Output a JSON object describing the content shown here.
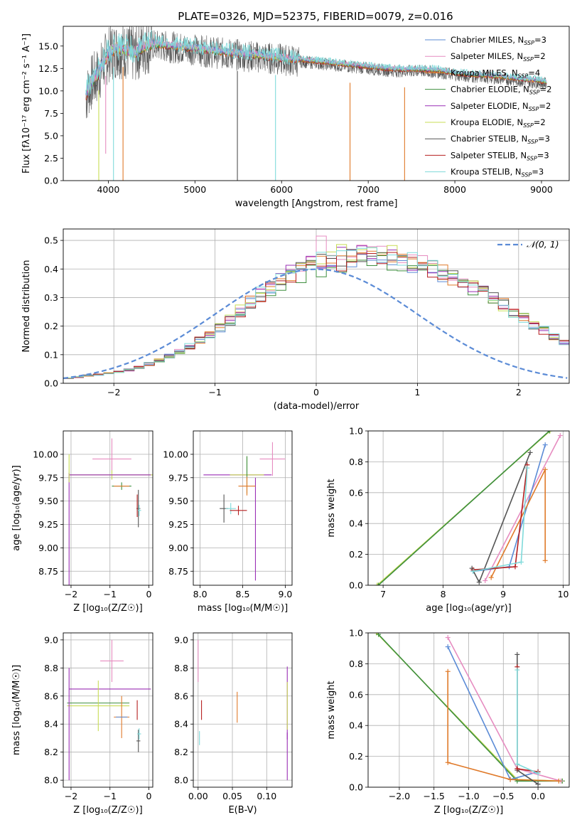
{
  "figure": {
    "title": "PLATE=0326, MJD=52375, FIBERID=0079, z=0.016"
  },
  "colors": {
    "chabrier_miles": "#5b8bd6",
    "salpeter_miles": "#e68cc0",
    "kroupa_miles": "#e07a2a",
    "chabrier_elodie": "#3f8f3f",
    "salpeter_elodie": "#9a2fb5",
    "kroupa_elodie": "#c8dc55",
    "chabrier_stelib": "#555555",
    "salpeter_stelib": "#b51f1f",
    "kroupa_stelib": "#7fdada",
    "gauss": "#5b8bd6",
    "grid": "#b0b0b0"
  },
  "chart_data": [
    {
      "id": "spectrum",
      "type": "line",
      "xlabel": "wavelength [Angstrom, rest frame]",
      "ylabel": "Flux [fλ10⁻¹⁷ erg cm⁻² s⁻¹ A⁻¹]",
      "xlim": [
        3480,
        9320
      ],
      "ylim": [
        0,
        17.2
      ],
      "xticks": [
        "4000",
        "5000",
        "6000",
        "7000",
        "8000",
        "9000"
      ],
      "yticks": [
        "0.0",
        "2.5",
        "5.0",
        "7.5",
        "10.0",
        "12.5",
        "15.0"
      ],
      "grid": false,
      "legend": "upper right",
      "legend_entries": [
        {
          "name": "Chabrier MILES, N",
          "sub": "SSP",
          "tail": "=3",
          "color_key": "chabrier_miles"
        },
        {
          "name": "Salpeter MILES, N",
          "sub": "SSP",
          "tail": "=2",
          "color_key": "salpeter_miles"
        },
        {
          "name": "Kroupa MILES, N",
          "sub": "SSP",
          "tail": "=4",
          "color_key": "kroupa_miles"
        },
        {
          "name": "Chabrier ELODIE, N",
          "sub": "SSP",
          "tail": "=2",
          "color_key": "chabrier_elodie"
        },
        {
          "name": "Salpeter ELODIE, N",
          "sub": "SSP",
          "tail": "=2",
          "color_key": "salpeter_elodie"
        },
        {
          "name": "Kroupa ELODIE, N",
          "sub": "SSP",
          "tail": "=2",
          "color_key": "kroupa_elodie"
        },
        {
          "name": "Chabrier STELIB, N",
          "sub": "SSP",
          "tail": "=3",
          "color_key": "chabrier_stelib"
        },
        {
          "name": "Salpeter STELIB, N",
          "sub": "SSP",
          "tail": "=3",
          "color_key": "salpeter_stelib"
        },
        {
          "name": "Kroupa STELIB, N",
          "sub": "SSP",
          "tail": "=3",
          "color_key": "kroupa_stelib"
        }
      ],
      "continuum": {
        "x": [
          3740,
          3800,
          3900,
          4000,
          4100,
          4200,
          4300,
          4400,
          4500,
          4600,
          4800,
          5000,
          5200,
          5400,
          5600,
          5800,
          6000,
          6200,
          6400,
          6600,
          6800,
          7000,
          7200,
          7400,
          7600,
          7800,
          8000,
          8200,
          8400,
          8600,
          8800,
          9000,
          9060
        ],
        "y": [
          9.5,
          11.0,
          12.2,
          14.3,
          14.8,
          14.6,
          14.2,
          15.0,
          15.3,
          15.2,
          15.0,
          14.8,
          14.5,
          14.3,
          14.1,
          13.9,
          13.7,
          13.5,
          13.3,
          13.1,
          12.9,
          12.7,
          12.5,
          12.4,
          12.4,
          12.3,
          12.0,
          11.8,
          11.7,
          11.5,
          11.3,
          11.1,
          11.0
        ]
      },
      "dips": [
        {
          "x": 3890,
          "y": 0.0
        },
        {
          "x": 3970,
          "y": 3.0
        },
        {
          "x": 4060,
          "y": 0.0
        },
        {
          "x": 4170,
          "y": 0.0
        },
        {
          "x": 5490,
          "y": 0.0
        },
        {
          "x": 5930,
          "y": 0.0
        },
        {
          "x": 6790,
          "y": 0.0
        },
        {
          "x": 7420,
          "y": 0.0
        }
      ]
    },
    {
      "id": "residuals",
      "type": "line",
      "xlabel": "(data-model)/error",
      "ylabel": "Normed distribution",
      "xlim": [
        -2.5,
        2.5
      ],
      "ylim": [
        0,
        0.54
      ],
      "xticks": [
        "−2",
        "−1",
        "0",
        "1",
        "2"
      ],
      "yticks": [
        "0.0",
        "0.1",
        "0.2",
        "0.3",
        "0.4",
        "0.5"
      ],
      "grid": true,
      "legend": "upper right",
      "gauss_label": "𝒩(0, 1)",
      "bin_edges_start": -2.5,
      "bin_width": 0.1,
      "hist_base": [
        0.018,
        0.022,
        0.027,
        0.03,
        0.035,
        0.04,
        0.047,
        0.057,
        0.068,
        0.08,
        0.095,
        0.11,
        0.13,
        0.15,
        0.17,
        0.195,
        0.22,
        0.25,
        0.28,
        0.305,
        0.33,
        0.355,
        0.375,
        0.39,
        0.405,
        0.415,
        0.425,
        0.43,
        0.435,
        0.435,
        0.43,
        0.43,
        0.43,
        0.425,
        0.42,
        0.41,
        0.4,
        0.385,
        0.37,
        0.355,
        0.335,
        0.315,
        0.295,
        0.275,
        0.25,
        0.23,
        0.205,
        0.185,
        0.165,
        0.145,
        0.13,
        0.115,
        0.1,
        0.088,
        0.076,
        0.065,
        0.056,
        0.048,
        0.04,
        0.034,
        0.028,
        0.024,
        0.02,
        0.017,
        0.014,
        0.012,
        0.01,
        0.008,
        0.007,
        0.006
      ]
    },
    {
      "id": "age_Z",
      "type": "scatter",
      "xlabel": "Z [log₁₀(Z/Z☉)]",
      "ylabel": "age  [log₁₀(age/yr)]",
      "xlim": [
        -2.2,
        0.1
      ],
      "ylim": [
        8.6,
        10.25
      ],
      "xticks": [
        "−2",
        "−1",
        "0"
      ],
      "yticks": [
        "8.75",
        "9.00",
        "9.25",
        "9.50",
        "9.75",
        "10.00"
      ],
      "grid": true,
      "points": [
        {
          "c": "salpeter_miles",
          "x": -0.95,
          "y": 9.95,
          "ex": 0.5,
          "ey": 0.22
        },
        {
          "c": "kroupa_elodie",
          "x": -0.95,
          "y": 9.78,
          "ex": 1.1,
          "ey": 0.05
        },
        {
          "c": "salpeter_elodie",
          "x": -1.0,
          "y": 9.78,
          "ex": 1.05,
          "ey": 0.0
        },
        {
          "c": "salpeter_elodie",
          "x": -2.05,
          "y": 9.2,
          "ex": 0.0,
          "ey": 0.6
        },
        {
          "c": "kroupa_elodie",
          "x": -2.05,
          "y": 9.85,
          "ex": 0.0,
          "ey": 0.15
        },
        {
          "c": "chabrier_elodie",
          "x": -0.7,
          "y": 9.66,
          "ex": 0.25,
          "ey": 0.04
        },
        {
          "c": "kroupa_miles",
          "x": -0.7,
          "y": 9.66,
          "ex": 0.2,
          "ey": 0.0
        },
        {
          "c": "chabrier_stelib",
          "x": -0.27,
          "y": 9.42,
          "ex": 0.05,
          "ey": 0.2
        },
        {
          "c": "kroupa_stelib",
          "x": -0.25,
          "y": 9.4,
          "ex": 0.05,
          "ey": 0.06
        },
        {
          "c": "salpeter_stelib",
          "x": -0.3,
          "y": 9.45,
          "ex": 0.0,
          "ey": 0.12
        }
      ]
    },
    {
      "id": "age_mass",
      "type": "scatter",
      "xlabel": "mass [log₁₀(M/M☉)]",
      "ylabel": "",
      "xlim": [
        7.92,
        9.08
      ],
      "ylim": [
        8.6,
        10.25
      ],
      "xticks": [
        "8.0",
        "8.5",
        "9.0"
      ],
      "yticks": [
        "8.75",
        "9.00",
        "9.25",
        "9.50",
        "9.75",
        "10.00"
      ],
      "grid": true,
      "points": [
        {
          "c": "salpeter_miles",
          "x": 8.85,
          "y": 9.95,
          "ex": 0.15,
          "ey": 0.18
        },
        {
          "c": "salpeter_elodie",
          "x": 8.44,
          "y": 9.78,
          "ex": 0.4,
          "ey": 0.0
        },
        {
          "c": "kroupa_elodie",
          "x": 8.55,
          "y": 9.78,
          "ex": 0.2,
          "ey": 0.2
        },
        {
          "c": "chabrier_elodie",
          "x": 8.55,
          "y": 9.78,
          "ex": 0.0,
          "ey": 0.2
        },
        {
          "c": "salpeter_elodie",
          "x": 8.65,
          "y": 9.2,
          "ex": 0.0,
          "ey": 0.55
        },
        {
          "c": "kroupa_miles",
          "x": 8.55,
          "y": 9.66,
          "ex": 0.1,
          "ey": 0.1
        },
        {
          "c": "chabrier_stelib",
          "x": 8.28,
          "y": 9.42,
          "ex": 0.05,
          "ey": 0.15
        },
        {
          "c": "kroupa_stelib",
          "x": 8.36,
          "y": 9.42,
          "ex": 0.06,
          "ey": 0.06
        },
        {
          "c": "salpeter_stelib",
          "x": 8.45,
          "y": 9.4,
          "ex": 0.1,
          "ey": 0.05
        }
      ]
    },
    {
      "id": "weight_age",
      "type": "line",
      "xlabel": "age  [log₁₀(age/yr)]",
      "ylabel": "mass weight",
      "xlim": [
        6.75,
        10.1
      ],
      "ylim": [
        0,
        1.0
      ],
      "xticks": [
        "7",
        "8",
        "9",
        "10"
      ],
      "yticks": [
        "0.0",
        "0.2",
        "0.4",
        "0.6",
        "0.8",
        "1.0"
      ],
      "grid": true,
      "series": [
        {
          "c": "kroupa_elodie",
          "x": [
            6.9,
            9.78
          ],
          "y": [
            0.0,
            1.0
          ]
        },
        {
          "c": "chabrier_elodie",
          "x": [
            6.92,
            9.77
          ],
          "y": [
            0.0,
            1.0
          ]
        },
        {
          "c": "salpeter_miles",
          "x": [
            8.7,
            9.95
          ],
          "y": [
            0.03,
            0.97
          ]
        },
        {
          "c": "chabrier_miles",
          "x": [
            8.5,
            9.1,
            9.7
          ],
          "y": [
            0.09,
            0.12,
            0.91
          ]
        },
        {
          "c": "kroupa_miles",
          "x": [
            8.8,
            9.7,
            9.7
          ],
          "y": [
            0.05,
            0.75,
            0.16
          ]
        },
        {
          "c": "chabrier_stelib",
          "x": [
            8.48,
            8.6,
            9.45
          ],
          "y": [
            0.11,
            0.02,
            0.86
          ]
        },
        {
          "c": "salpeter_stelib",
          "x": [
            8.5,
            9.2,
            9.4
          ],
          "y": [
            0.1,
            0.12,
            0.78
          ]
        },
        {
          "c": "kroupa_stelib",
          "x": [
            8.5,
            9.3,
            9.4
          ],
          "y": [
            0.09,
            0.15,
            0.76
          ]
        }
      ]
    },
    {
      "id": "mass_Z",
      "type": "scatter",
      "xlabel": "Z [log₁₀(Z/Z☉)]",
      "ylabel": "mass [log₁₀(M/M☉)]",
      "xlim": [
        -2.2,
        0.1
      ],
      "ylim": [
        7.95,
        9.05
      ],
      "xticks": [
        "−2",
        "−1",
        "0"
      ],
      "yticks": [
        "8.0",
        "8.2",
        "8.4",
        "8.6",
        "8.8",
        "9.0"
      ],
      "grid": true,
      "points": [
        {
          "c": "salpeter_miles",
          "x": -0.95,
          "y": 8.85,
          "ex": 0.3,
          "ey": 0.15
        },
        {
          "c": "salpeter_elodie",
          "x": -1.0,
          "y": 8.65,
          "ex": 1.05,
          "ey": 0.0
        },
        {
          "c": "chabrier_elodie",
          "x": -1.3,
          "y": 8.55,
          "ex": 0.8,
          "ey": 0.0
        },
        {
          "c": "kroupa_elodie",
          "x": -1.3,
          "y": 8.53,
          "ex": 0.8,
          "ey": 0.18
        },
        {
          "c": "salpeter_elodie",
          "x": -2.05,
          "y": 8.4,
          "ex": 0.0,
          "ey": 0.4
        },
        {
          "c": "kroupa_miles",
          "x": -0.7,
          "y": 8.45,
          "ex": 0.2,
          "ey": 0.15
        },
        {
          "c": "chabrier_miles",
          "x": -0.7,
          "y": 8.45,
          "ex": 0.15,
          "ey": 0.0
        },
        {
          "c": "chabrier_stelib",
          "x": -0.27,
          "y": 8.28,
          "ex": 0.05,
          "ey": 0.08
        },
        {
          "c": "kroupa_stelib",
          "x": -0.25,
          "y": 8.33,
          "ex": 0.05,
          "ey": 0.04
        },
        {
          "c": "salpeter_stelib",
          "x": -0.3,
          "y": 8.5,
          "ex": 0.0,
          "ey": 0.07
        }
      ]
    },
    {
      "id": "mass_ebv",
      "type": "scatter",
      "xlabel": "E(B-V)",
      "ylabel": "",
      "xlim": [
        -0.007,
        0.137
      ],
      "ylim": [
        7.95,
        9.05
      ],
      "xticks": [
        "0.00",
        "0.05",
        "0.10"
      ],
      "yticks": [
        "8.0",
        "8.2",
        "8.4",
        "8.6",
        "8.8",
        "9.0"
      ],
      "grid": true,
      "points": [
        {
          "c": "salpeter_miles",
          "x": 0.0,
          "y": 8.85,
          "ex": 0.0,
          "ey": 0.15
        },
        {
          "c": "kroupa_stelib",
          "x": 0.002,
          "y": 8.3,
          "ex": 0.0,
          "ey": 0.05
        },
        {
          "c": "salpeter_stelib",
          "x": 0.005,
          "y": 8.5,
          "ex": 0.0,
          "ey": 0.07
        },
        {
          "c": "kroupa_miles",
          "x": 0.057,
          "y": 8.52,
          "ex": 0.0,
          "ey": 0.11
        },
        {
          "c": "salpeter_elodie",
          "x": 0.13,
          "y": 8.55,
          "ex": 0.0,
          "ey": 0.26
        },
        {
          "c": "kroupa_elodie",
          "x": 0.13,
          "y": 8.53,
          "ex": 0.0,
          "ey": 0.17
        },
        {
          "c": "salpeter_elodie",
          "x": 0.13,
          "y": 8.17,
          "ex": 0.0,
          "ey": 0.17
        }
      ]
    },
    {
      "id": "weight_Z",
      "type": "line",
      "xlabel": "Z [log₁₀(Z/Z☉)]",
      "ylabel": "mass weight",
      "xlim": [
        -2.45,
        0.45
      ],
      "ylim": [
        0,
        1.0
      ],
      "xticks": [
        "−2.0",
        "−1.5",
        "−1.0",
        "−0.5",
        "0.0"
      ],
      "yticks": [
        "0.0",
        "0.2",
        "0.4",
        "0.6",
        "0.8",
        "1.0"
      ],
      "grid": true,
      "series": [
        {
          "c": "kroupa_elodie",
          "x": [
            -2.33,
            -0.3,
            0.35
          ],
          "y": [
            1.0,
            0.05,
            0.04
          ]
        },
        {
          "c": "chabrier_elodie",
          "x": [
            -2.3,
            -0.3,
            0.35
          ],
          "y": [
            0.99,
            0.04,
            0.04
          ]
        },
        {
          "c": "chabrier_miles",
          "x": [
            -1.3,
            -0.4,
            0.0
          ],
          "y": [
            0.91,
            0.05,
            0.1
          ]
        },
        {
          "c": "salpeter_miles",
          "x": [
            -1.3,
            -0.3,
            0.33
          ],
          "y": [
            0.97,
            0.12,
            0.04
          ]
        },
        {
          "c": "kroupa_miles",
          "x": [
            -1.3,
            -1.3,
            -0.4,
            0.3
          ],
          "y": [
            0.75,
            0.16,
            0.05,
            0.04
          ]
        },
        {
          "c": "chabrier_stelib",
          "x": [
            -0.3,
            -0.3,
            0.0,
            0.0
          ],
          "y": [
            0.86,
            0.11,
            0.02,
            0.02
          ]
        },
        {
          "c": "salpeter_stelib",
          "x": [
            -0.3,
            -0.3,
            0.0
          ],
          "y": [
            0.78,
            0.12,
            0.1
          ]
        },
        {
          "c": "kroupa_stelib",
          "x": [
            -0.3,
            -0.3,
            0.0
          ],
          "y": [
            0.76,
            0.15,
            0.09
          ]
        }
      ]
    }
  ]
}
